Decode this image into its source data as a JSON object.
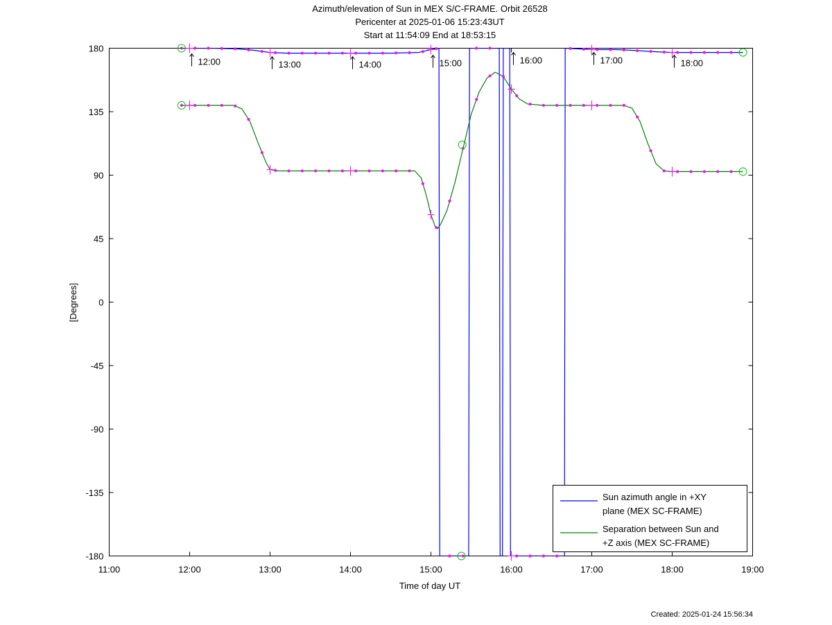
{
  "chart_data": {
    "type": "line",
    "title_lines": [
      "Azimuth/elevation of Sun in MEX S/C-FRAME.  Orbit 26528",
      "Pericenter at 2025-01-06 15:23:43UT",
      "Start at 11:54:09 End at 18:53:15"
    ],
    "xlabel": "Time of day UT",
    "ylabel": "[Degrees]",
    "xlim": [
      11.0,
      19.0
    ],
    "ylim": [
      -180,
      180
    ],
    "x_ticks": [
      11,
      12,
      13,
      14,
      15,
      16,
      17,
      18,
      19
    ],
    "x_tick_labels": [
      "11:00",
      "12:00",
      "13:00",
      "14:00",
      "15:00",
      "16:00",
      "17:00",
      "18:00",
      "19:00"
    ],
    "y_ticks": [
      180,
      135,
      90,
      45,
      0,
      -45,
      -90,
      -135,
      -180
    ],
    "y_tick_labels": [
      "180",
      "135",
      "90",
      "45",
      "0",
      "-45",
      "-90",
      "-135",
      "-180"
    ],
    "hour_markers": [
      {
        "x": 12.0,
        "y": 177,
        "label": "12:00"
      },
      {
        "x": 13.0,
        "y": 175,
        "label": "13:00"
      },
      {
        "x": 14.0,
        "y": 175,
        "label": "14:00"
      },
      {
        "x": 15.0,
        "y": 176,
        "label": "15:00"
      },
      {
        "x": 16.0,
        "y": 178,
        "label": "16:00"
      },
      {
        "x": 17.0,
        "y": 178,
        "label": "17:00"
      },
      {
        "x": 18.0,
        "y": 176,
        "label": "18:00"
      }
    ],
    "series": [
      {
        "name": "Sun azimuth angle in +XY plane (MEX SC-FRAME)",
        "color": "#0000ff",
        "points": [
          [
            11.9,
            180
          ],
          [
            12.0,
            180
          ],
          [
            12.3,
            180
          ],
          [
            12.6,
            179.5
          ],
          [
            12.8,
            178.5
          ],
          [
            13.0,
            177
          ],
          [
            13.2,
            176.5
          ],
          [
            13.5,
            176.5
          ],
          [
            14.0,
            176.5
          ],
          [
            14.5,
            176.5
          ],
          [
            14.85,
            177
          ],
          [
            15.0,
            179
          ],
          [
            15.1,
            180
          ],
          [
            15.11,
            -180
          ],
          [
            15.47,
            -180
          ],
          [
            15.48,
            180
          ],
          [
            15.85,
            180
          ],
          [
            15.86,
            -180
          ],
          [
            15.89,
            -180
          ],
          [
            15.9,
            180
          ],
          [
            15.98,
            180
          ],
          [
            15.99,
            -180
          ],
          [
            16.66,
            -180
          ],
          [
            16.67,
            180
          ],
          [
            17.0,
            179
          ],
          [
            17.3,
            179
          ],
          [
            17.5,
            178.5
          ],
          [
            17.8,
            177.5
          ],
          [
            18.0,
            177
          ],
          [
            18.3,
            177
          ],
          [
            18.88,
            177
          ]
        ],
        "markers": [
          [
            11.9,
            180
          ],
          [
            15.38,
            -180
          ],
          [
            18.88,
            177
          ]
        ]
      },
      {
        "name": "Separation between Sun and +Z axis (MEX SC-FRAME)",
        "color": "#008000",
        "points": [
          [
            11.9,
            139.5
          ],
          [
            12.0,
            139.5
          ],
          [
            12.2,
            139.5
          ],
          [
            12.4,
            139.5
          ],
          [
            12.55,
            139.5
          ],
          [
            12.65,
            137
          ],
          [
            12.75,
            128
          ],
          [
            12.85,
            113
          ],
          [
            12.95,
            99
          ],
          [
            13.0,
            94
          ],
          [
            13.1,
            93
          ],
          [
            13.5,
            93
          ],
          [
            14.0,
            93
          ],
          [
            14.5,
            93
          ],
          [
            14.8,
            93
          ],
          [
            14.88,
            88
          ],
          [
            14.95,
            74
          ],
          [
            15.0,
            62
          ],
          [
            15.05,
            54
          ],
          [
            15.08,
            52
          ],
          [
            15.12,
            55
          ],
          [
            15.2,
            65
          ],
          [
            15.3,
            85
          ],
          [
            15.4,
            109
          ],
          [
            15.5,
            133
          ],
          [
            15.6,
            149
          ],
          [
            15.7,
            159
          ],
          [
            15.8,
            163
          ],
          [
            15.9,
            160
          ],
          [
            16.0,
            151
          ],
          [
            16.1,
            144
          ],
          [
            16.2,
            140.5
          ],
          [
            16.4,
            139.5
          ],
          [
            16.6,
            139.5
          ],
          [
            17.0,
            139.5
          ],
          [
            17.2,
            139.5
          ],
          [
            17.4,
            139.5
          ],
          [
            17.5,
            137.5
          ],
          [
            17.6,
            128
          ],
          [
            17.7,
            112
          ],
          [
            17.8,
            98
          ],
          [
            17.9,
            93
          ],
          [
            18.0,
            92.5
          ],
          [
            18.3,
            92.5
          ],
          [
            18.6,
            92.5
          ],
          [
            18.88,
            92.5
          ]
        ],
        "markers": [
          [
            11.9,
            139.5
          ],
          [
            15.39,
            111.5
          ],
          [
            18.88,
            92.5
          ]
        ]
      }
    ],
    "legend_position": "bottom-right"
  },
  "footer": {
    "created": "Created: 2025-01-24 15:56:34"
  }
}
